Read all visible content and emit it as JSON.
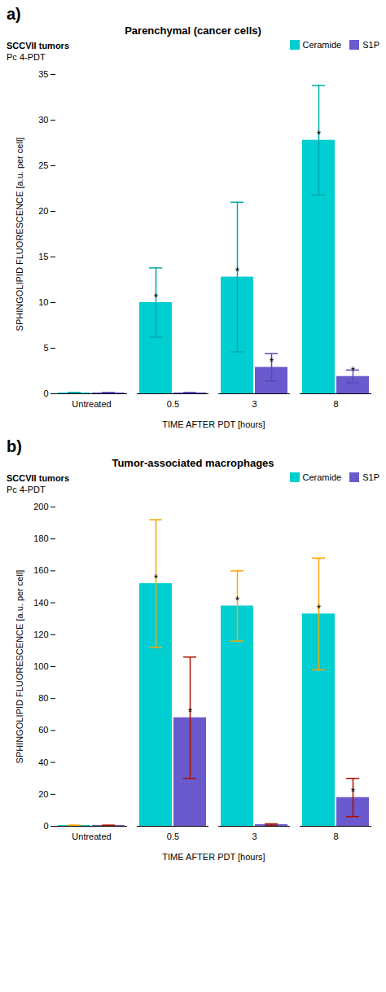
{
  "chart_data": [
    {
      "type": "bar",
      "panel_label": "a)",
      "title": "Parenchymal (cancer cells)",
      "subtitle": [
        "SCCVII tumors",
        "Pc 4-PDT"
      ],
      "xlabel": "TIME AFTER PDT [hours]",
      "ylabel": "SPHINGOLIPID FLUORESCENCE [a.u. per cell]",
      "categories": [
        "Untreated",
        "0.5",
        "3",
        "8"
      ],
      "series": [
        {
          "name": "Ceramide",
          "color": "#00CED1",
          "values": [
            0.1,
            10.0,
            12.8,
            27.8
          ],
          "errors": [
            0.05,
            3.8,
            8.2,
            6.0
          ],
          "error_color": "#00AAAA",
          "annotations": [
            null,
            "*",
            "*",
            "*"
          ]
        },
        {
          "name": "S1P",
          "color": "#6A5ACD",
          "values": [
            0.1,
            0.1,
            2.9,
            1.9
          ],
          "errors": [
            0.05,
            0.05,
            1.5,
            0.7
          ],
          "error_color": "#5A4ABD",
          "annotations": [
            null,
            null,
            "*",
            "*"
          ]
        }
      ],
      "ylim": [
        0,
        35
      ],
      "yticks": [
        0,
        5,
        10,
        15,
        20,
        25,
        30,
        35
      ],
      "legend": "upper right",
      "grid": false
    },
    {
      "type": "bar",
      "panel_label": "b)",
      "title": "Tumor-associated macrophages",
      "subtitle": [
        "SCCVII tumors",
        "Pc 4-PDT"
      ],
      "xlabel": "TIME AFTER PDT [hours]",
      "ylabel": "SPHINGOLIPID FLUORESCENCE [a.u. per cell]",
      "categories": [
        "Untreated",
        "0.5",
        "3",
        "8"
      ],
      "series": [
        {
          "name": "Ceramide",
          "color": "#00CED1",
          "values": [
            0.5,
            152.0,
            138.0,
            133.0
          ],
          "errors": [
            0.2,
            40.0,
            22.0,
            35.0
          ],
          "error_color": "#FFA500",
          "annotations": [
            null,
            "*",
            "*",
            "*"
          ]
        },
        {
          "name": "S1P",
          "color": "#6A5ACD",
          "values": [
            0.5,
            68.0,
            1.0,
            18.0
          ],
          "errors": [
            0.2,
            38.0,
            0.5,
            12.0
          ],
          "error_color": "#AA1100",
          "annotations": [
            null,
            "*",
            null,
            "*"
          ]
        }
      ],
      "ylim": [
        0,
        200
      ],
      "yticks": [
        0,
        20,
        40,
        60,
        80,
        100,
        120,
        140,
        160,
        180,
        200
      ],
      "legend": "upper right",
      "grid": false
    }
  ]
}
